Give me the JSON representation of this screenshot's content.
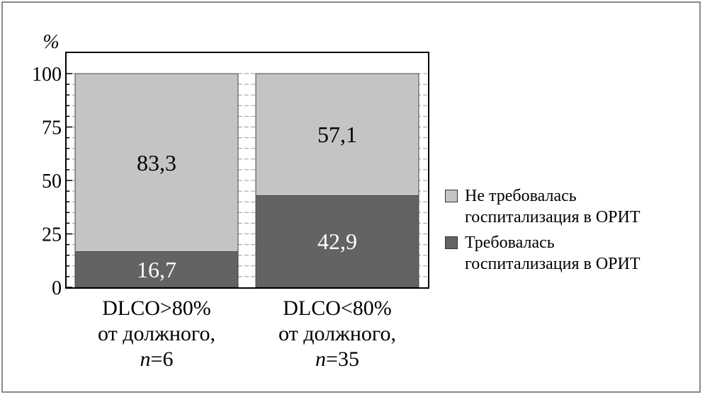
{
  "chart_data": {
    "type": "stacked-bar",
    "y_unit_label": "%",
    "ylim": [
      0,
      100
    ],
    "yticks": [
      0,
      25,
      50,
      75,
      100
    ],
    "grid": "horizontal dashed",
    "legend_position": "right",
    "categories": [
      {
        "line1": "DLCO>80%",
        "line2": "от должного,",
        "n_prefix": "n",
        "n_value": "=6"
      },
      {
        "line1": "DLCO<80%",
        "line2": "от должного,",
        "n_prefix": "n",
        "n_value": "=35"
      }
    ],
    "series": [
      {
        "name": "Требовалась госпитализация в ОРИТ",
        "color": "#636363",
        "label_color": "#ffffff",
        "values": [
          16.7,
          42.9
        ],
        "labels": [
          "16,7",
          "42,9"
        ]
      },
      {
        "name": "Не требовалась госпитализация в ОРИТ",
        "color": "#c4c4c4",
        "label_color": "#000000",
        "values": [
          83.3,
          57.1
        ],
        "labels": [
          "83,3",
          "57,1"
        ]
      }
    ]
  },
  "legend": {
    "item1_line1": "Не требовалась",
    "item1_line2": "госпитализация в ОРИТ",
    "item2_line1": "Требовалась",
    "item2_line2": "госпитализация в ОРИТ"
  }
}
